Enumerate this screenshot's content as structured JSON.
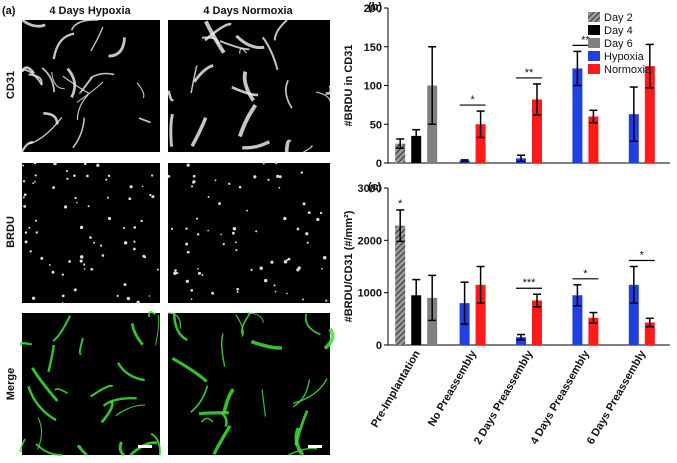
{
  "panel_a": {
    "label": "(a)",
    "columns": [
      "4 Days Hypoxia",
      "4 Days Normoxia"
    ],
    "rows": [
      "CD31",
      "BRDU",
      "Merge"
    ]
  },
  "chart_data": [
    {
      "type": "bar",
      "panel": "(b)",
      "ylabel": "#BRDU in CD31",
      "categories": [
        null,
        null,
        null,
        null,
        null
      ],
      "series": [
        {
          "name": "Day 2",
          "color": "#666666",
          "hatch": true,
          "values": [
            25,
            null,
            null,
            null,
            null
          ],
          "errors": [
            6,
            null,
            null,
            null,
            null
          ]
        },
        {
          "name": "Day 4",
          "color": "#000000",
          "values": [
            35,
            null,
            null,
            null,
            null
          ],
          "errors": [
            8,
            null,
            null,
            null,
            null
          ]
        },
        {
          "name": "Day 6",
          "color": "#808080",
          "values": [
            100,
            null,
            null,
            null,
            null
          ],
          "errors": [
            50,
            null,
            null,
            null,
            null
          ]
        },
        {
          "name": "Hypoxia",
          "color": "#1f3fe0",
          "values": [
            null,
            3,
            6,
            122,
            63
          ],
          "errors": [
            null,
            1,
            4,
            22,
            35
          ]
        },
        {
          "name": "Normoxia",
          "color": "#ff1a1a",
          "values": [
            null,
            50,
            82,
            60,
            125
          ],
          "errors": [
            null,
            17,
            20,
            8,
            28
          ]
        }
      ],
      "ylim": [
        0,
        200
      ],
      "yticks": [
        0,
        50,
        100,
        150,
        200
      ],
      "legend": "upper right",
      "annotations": [
        {
          "text": "*",
          "category": 1
        },
        {
          "text": "**",
          "category": 2
        },
        {
          "text": "**",
          "category": 3
        }
      ]
    },
    {
      "type": "bar",
      "panel": "(c)",
      "ylabel": "#BRDU/CD31 (#/mm²)",
      "categories": [
        "Pre-Implantation",
        "No Preassembly",
        "2 Days Preassembly",
        "4 Days Preassembly",
        "6 Days Preassembly"
      ],
      "series": [
        {
          "name": "Day 2",
          "color": "#666666",
          "hatch": true,
          "values": [
            2280,
            null,
            null,
            null,
            null
          ],
          "errors": [
            300,
            null,
            null,
            null,
            null
          ]
        },
        {
          "name": "Day 4",
          "color": "#000000",
          "values": [
            950,
            null,
            null,
            null,
            null
          ],
          "errors": [
            300,
            null,
            null,
            null,
            null
          ]
        },
        {
          "name": "Day 6",
          "color": "#808080",
          "values": [
            900,
            null,
            null,
            null,
            null
          ],
          "errors": [
            430,
            null,
            null,
            null,
            null
          ]
        },
        {
          "name": "Hypoxia",
          "color": "#1f3fe0",
          "values": [
            null,
            800,
            150,
            950,
            1150
          ],
          "errors": [
            null,
            400,
            50,
            200,
            350
          ]
        },
        {
          "name": "Normoxia",
          "color": "#ff1a1a",
          "values": [
            null,
            1150,
            850,
            520,
            430
          ],
          "errors": [
            null,
            350,
            120,
            100,
            80
          ]
        }
      ],
      "ylim": [
        0,
        3000
      ],
      "yticks": [
        0,
        1000,
        2000,
        3000
      ],
      "annotations": [
        {
          "text": "*",
          "category": 0,
          "series": 0
        },
        {
          "text": "***",
          "category": 2
        },
        {
          "text": "*",
          "category": 3
        },
        {
          "text": "*",
          "category": 4
        }
      ]
    }
  ]
}
